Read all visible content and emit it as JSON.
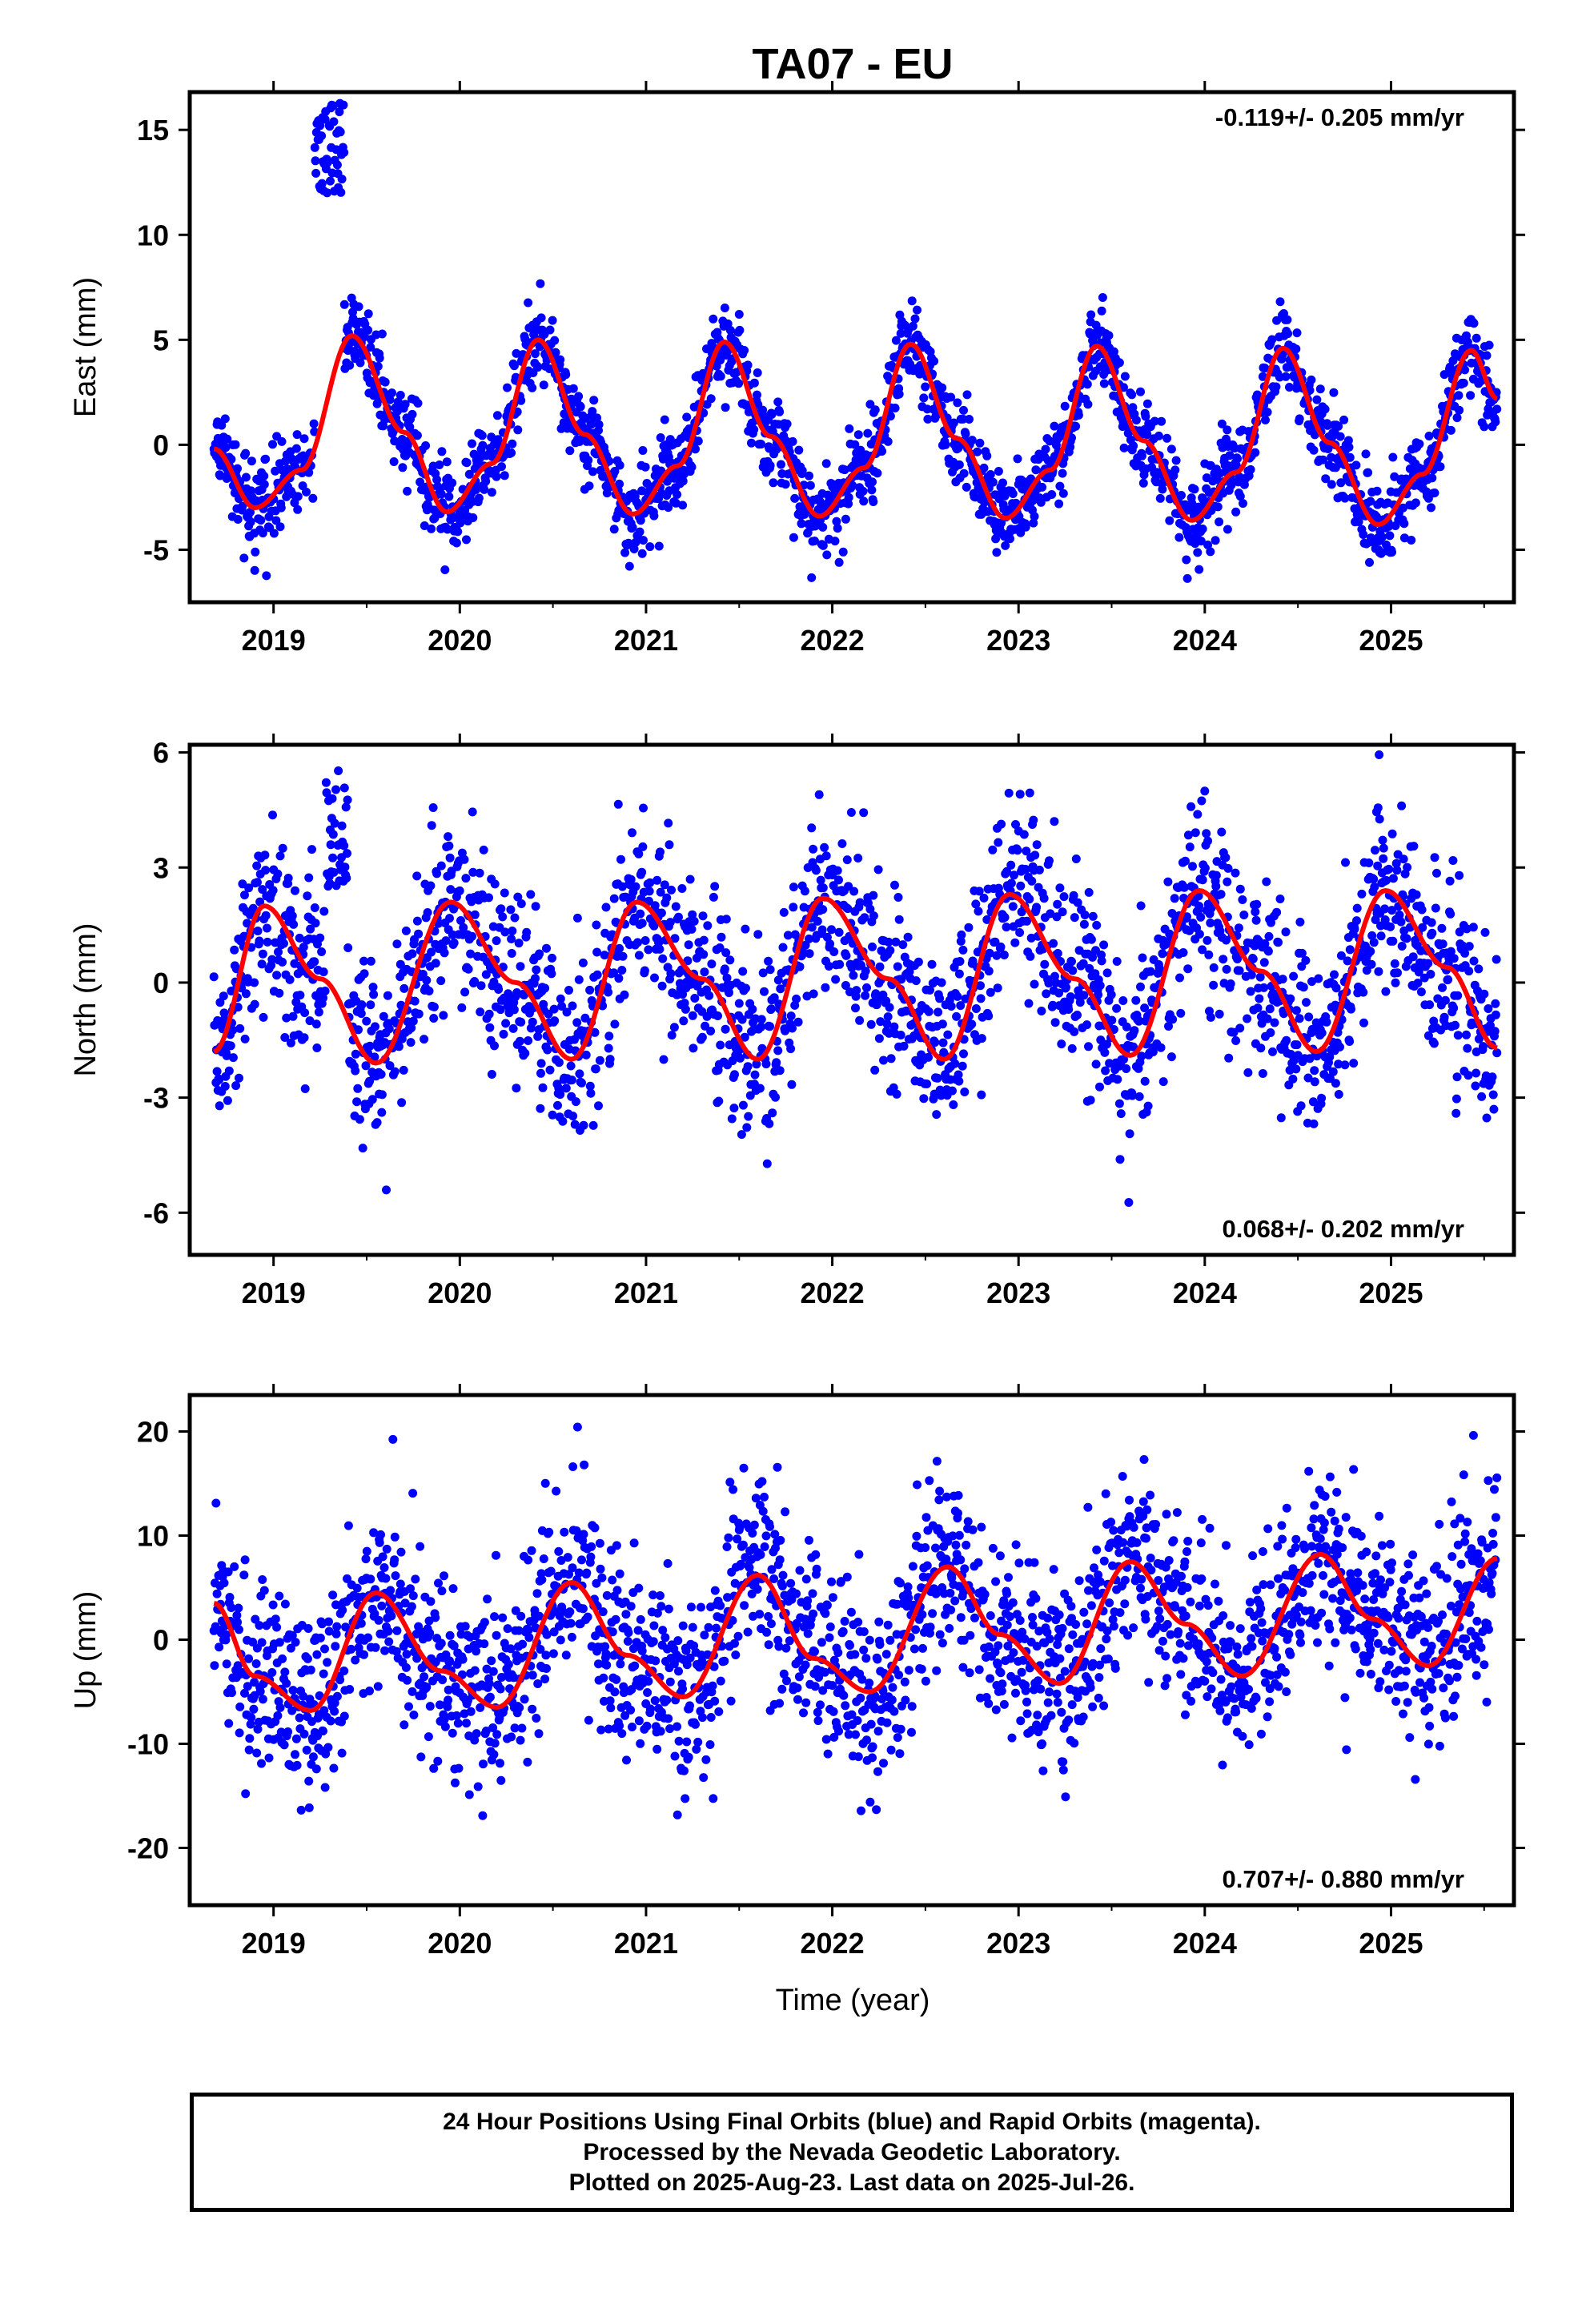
{
  "title": "TA07 - EU",
  "colors": {
    "points": "#0000ff",
    "model": "#ff0000",
    "frame": "#000000"
  },
  "xaxis_label": "Time (year)",
  "caption": [
    "24 Hour Positions Using Final Orbits (blue) and Rapid Orbits (magenta).",
    "Processed by the Nevada Geodetic Laboratory.",
    "Plotted on 2025-Aug-23. Last data on 2025-Jul-26."
  ],
  "chart_data": [
    {
      "type": "scatter",
      "name": "east",
      "ylabel": "East (mm)",
      "xlim": [
        2018.55,
        2025.66
      ],
      "ylim": [
        -7.5,
        16.8
      ],
      "yticks": [
        -5,
        0,
        5,
        10,
        15
      ],
      "xticks": [
        2019,
        2020,
        2021,
        2022,
        2023,
        2024,
        2025
      ],
      "rate_label": "-0.119+/- 0.205 mm/yr",
      "rate_position": "top-right",
      "series": [
        {
          "label": "daily positions",
          "color": "#0000ff",
          "x_start": 2018.68,
          "x_end": 2025.57,
          "annual_amplitude": 4.2,
          "annual_peak": 0.42,
          "offset": 0.8,
          "trend": -0.119,
          "scatter": 1.0,
          "anomaly": {
            "x_range": [
              2019.22,
              2019.38
            ],
            "y_range": [
              12,
              16.3
            ]
          }
        },
        {
          "label": "model",
          "color": "#ff0000",
          "x": [
            2018.68,
            2018.9,
            2019.15,
            2019.42,
            2019.7,
            2019.93,
            2020.17,
            2020.42,
            2020.67,
            2020.93,
            2021.17,
            2021.42,
            2021.67,
            2021.93,
            2022.17,
            2022.42,
            2022.67,
            2022.93,
            2023.17,
            2023.42,
            2023.67,
            2023.93,
            2024.17,
            2024.42,
            2024.67,
            2024.93,
            2025.17,
            2025.43,
            2025.57
          ],
          "y": [
            -0.2,
            -3.0,
            -1.2,
            5.2,
            0.6,
            -3.2,
            -0.9,
            5.0,
            0.5,
            -3.3,
            -1.0,
            4.9,
            0.4,
            -3.4,
            -1.1,
            4.8,
            0.3,
            -3.5,
            -1.2,
            4.7,
            0.2,
            -3.6,
            -1.3,
            4.6,
            0.1,
            -3.8,
            -1.4,
            4.5,
            2.2
          ]
        }
      ]
    },
    {
      "type": "scatter",
      "name": "north",
      "ylabel": "North (mm)",
      "xlim": [
        2018.55,
        2025.66
      ],
      "ylim": [
        -7.1,
        6.2
      ],
      "yticks": [
        -6,
        -3,
        0,
        3,
        6
      ],
      "xticks": [
        2019,
        2020,
        2021,
        2022,
        2023,
        2024,
        2025
      ],
      "rate_label": "0.068+/- 0.202 mm/yr",
      "rate_position": "bottom-right",
      "series": [
        {
          "label": "daily positions",
          "color": "#0000ff",
          "x_start": 2018.68,
          "x_end": 2025.57,
          "annual_amplitude": 1.5,
          "annual_peak": 0.96,
          "offset": 0.0,
          "trend": 0.068,
          "scatter": 1.2,
          "anomaly": {
            "x_range": [
              2019.28,
              2019.4
            ],
            "y_range": [
              2.5,
              5.6
            ]
          }
        },
        {
          "label": "model",
          "color": "#ff0000",
          "x": [
            2018.68,
            2018.95,
            2019.25,
            2019.55,
            2019.95,
            2020.3,
            2020.6,
            2020.95,
            2021.3,
            2021.6,
            2021.95,
            2022.3,
            2022.6,
            2022.95,
            2023.3,
            2023.6,
            2023.97,
            2024.3,
            2024.6,
            2024.97,
            2025.3,
            2025.57
          ],
          "y": [
            -1.8,
            2.0,
            0.1,
            -2.1,
            2.1,
            0.0,
            -2.0,
            2.1,
            0.1,
            -2.0,
            2.2,
            0.1,
            -2.0,
            2.3,
            0.1,
            -1.9,
            2.4,
            0.3,
            -1.8,
            2.4,
            0.4,
            -1.7
          ]
        }
      ]
    },
    {
      "type": "scatter",
      "name": "up",
      "ylabel": "Up (mm)",
      "xlim": [
        2018.55,
        2025.66
      ],
      "ylim": [
        -25.5,
        23.5
      ],
      "yticks": [
        -20,
        -10,
        0,
        10,
        20
      ],
      "xticks": [
        2019,
        2020,
        2021,
        2022,
        2023,
        2024,
        2025
      ],
      "rate_label": "0.707+/- 0.880 mm/yr",
      "rate_position": "bottom-right",
      "xlabel": "Time (year)",
      "series": [
        {
          "label": "daily positions",
          "color": "#0000ff",
          "x_start": 2018.68,
          "x_end": 2025.57,
          "annual_amplitude": 5.8,
          "annual_peak": 0.62,
          "offset": -1.0,
          "trend": 0.707,
          "scatter": 4.6,
          "anomaly": null
        },
        {
          "label": "model",
          "color": "#ff0000",
          "x": [
            2018.68,
            2018.9,
            2019.2,
            2019.55,
            2019.9,
            2020.2,
            2020.6,
            2020.9,
            2021.2,
            2021.6,
            2021.9,
            2022.2,
            2022.62,
            2022.9,
            2023.22,
            2023.6,
            2023.9,
            2024.2,
            2024.62,
            2024.9,
            2025.2,
            2025.57
          ],
          "y": [
            3.5,
            -3.5,
            -6.8,
            4.5,
            -3.0,
            -6.5,
            5.5,
            -1.5,
            -5.5,
            6.2,
            -1.8,
            -5.0,
            7.0,
            0.5,
            -4.2,
            7.5,
            1.5,
            -3.5,
            8.2,
            2.0,
            -2.5,
            7.8
          ]
        }
      ]
    }
  ]
}
